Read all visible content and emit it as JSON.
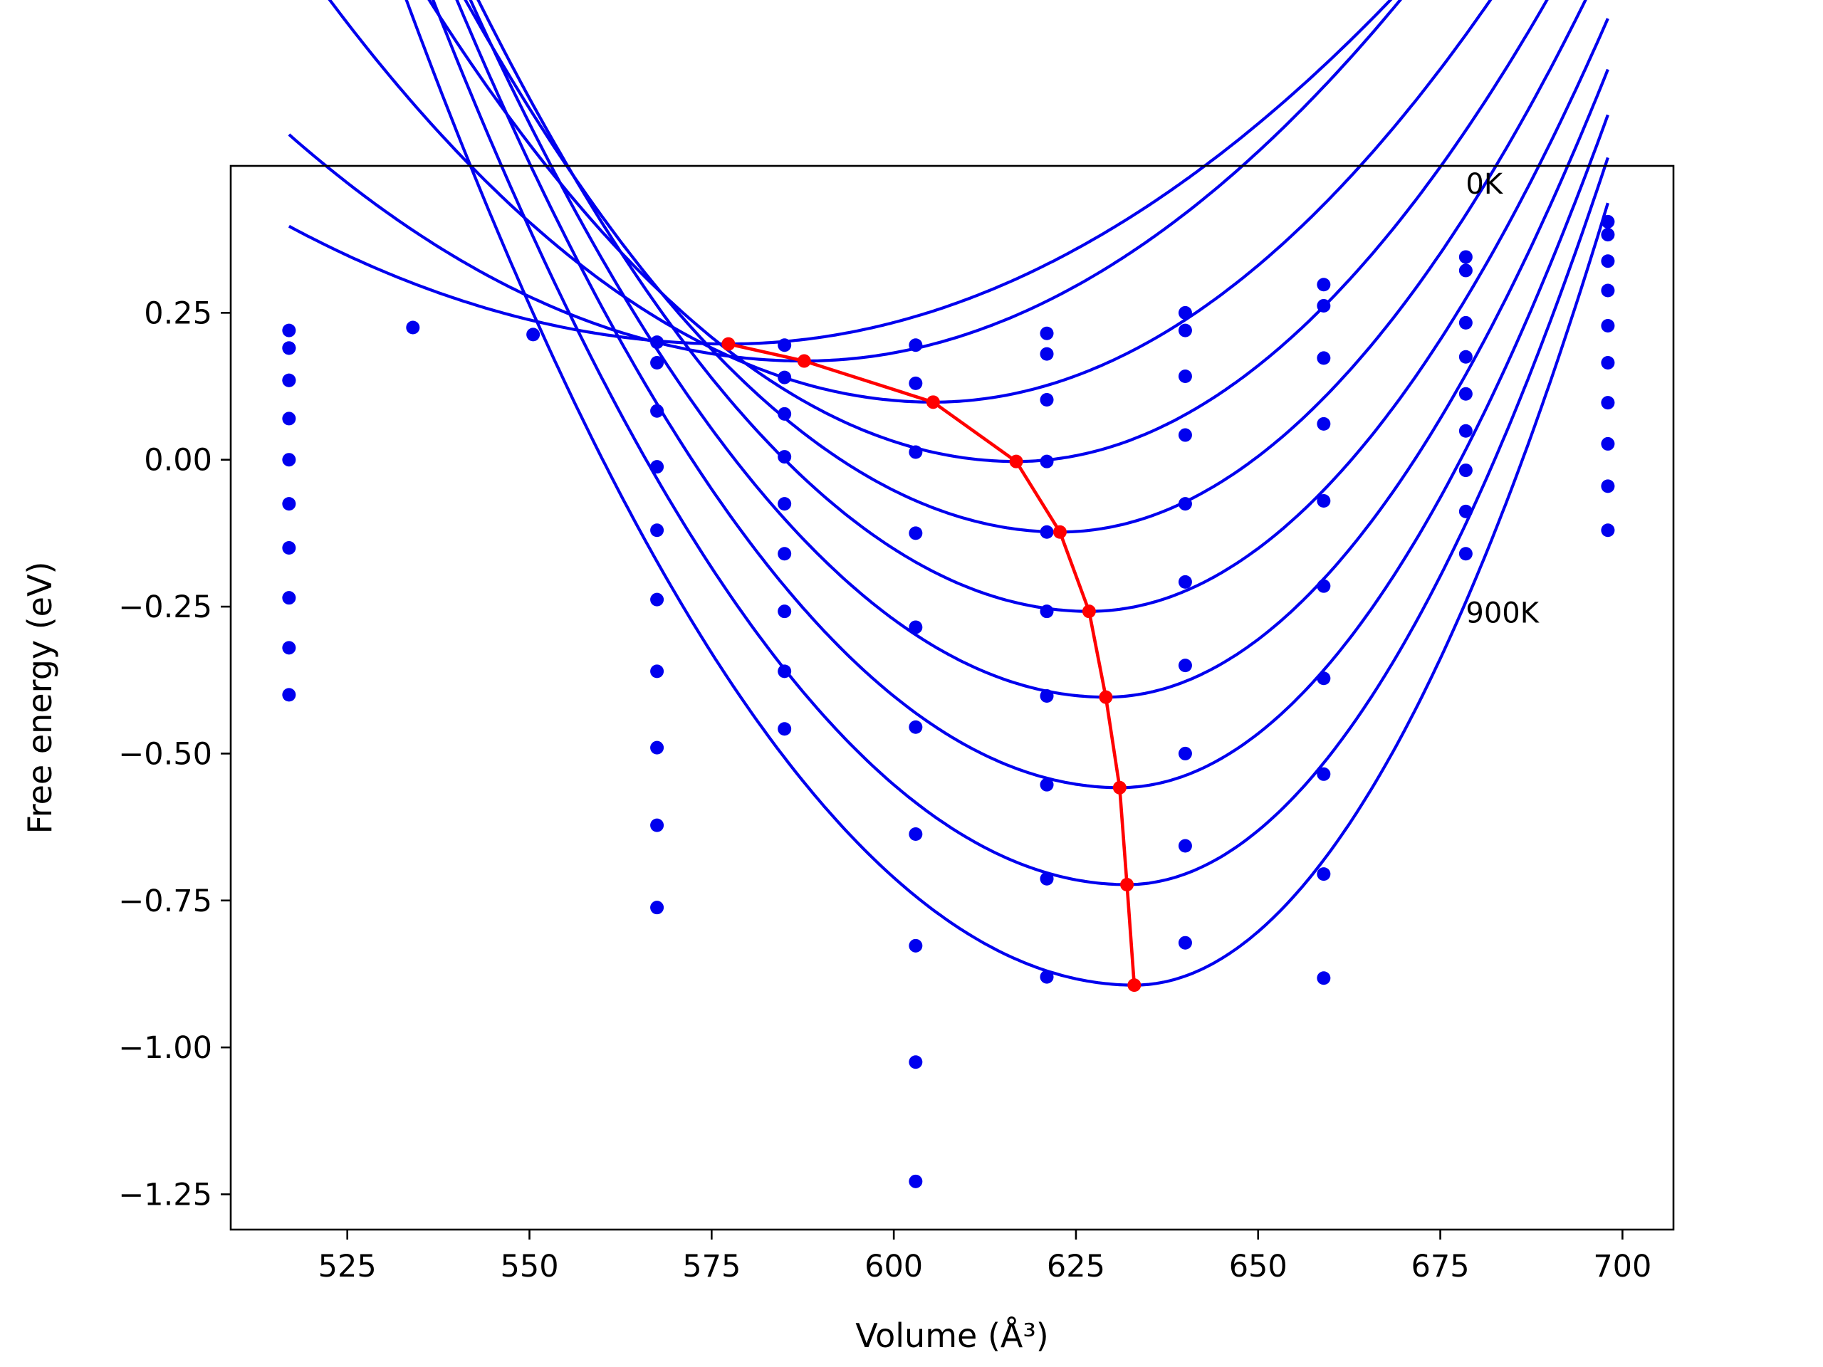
{
  "chart_data": {
    "type": "line",
    "xlabel": "Volume (Å³)",
    "ylabel": "Free energy (eV)",
    "xlim": [
      509,
      707
    ],
    "ylim": [
      -1.31,
      0.5
    ],
    "xticks": [
      525,
      550,
      575,
      600,
      625,
      650,
      675,
      700
    ],
    "yticks": [
      0.25,
      0.0,
      -0.25,
      -0.5,
      -0.75,
      -1.0,
      -1.25
    ],
    "xtick_labels": [
      "525",
      "550",
      "575",
      "600",
      "625",
      "650",
      "675",
      "700"
    ],
    "ytick_labels": [
      "0.25",
      "0.00",
      "−0.25",
      "−0.50",
      "−0.75",
      "−1.00",
      "−1.25"
    ],
    "grid": false,
    "annotations": [
      {
        "text": "0K",
        "x": 678.5,
        "y": 0.47
      },
      {
        "text": "900K",
        "x": 678.5,
        "y": -0.26
      }
    ],
    "colors": {
      "fit": "#0000ee",
      "points": "#0000ee",
      "minimum_path": "#ff0000"
    },
    "series": [
      {
        "points": [
          [
            517,
            0.22
          ],
          [
            534,
            0.225
          ],
          [
            550.5,
            0.213
          ],
          [
            567.5,
            0.2
          ],
          [
            585,
            0.195
          ],
          [
            603,
            0.195
          ],
          [
            621,
            0.215
          ],
          [
            640,
            0.25
          ],
          [
            659,
            0.298
          ],
          [
            678.5,
            0.345
          ],
          [
            698,
            0.405
          ]
        ],
        "fit": {
          "vmin": 577.3,
          "emin": 0.197,
          "curv_left": 5.51e-05,
          "curv_right": 7.09e-05
        }
      },
      {
        "points": [
          [
            517,
            0.19
          ],
          [
            567.5,
            0.165
          ],
          [
            585,
            0.14
          ],
          [
            603,
            0.13
          ],
          [
            621,
            0.18
          ],
          [
            640,
            0.22
          ],
          [
            659,
            0.262
          ],
          [
            678.5,
            0.322
          ],
          [
            698,
            0.383
          ]
        ],
        "fit": {
          "vmin": 587.7,
          "emin": 0.168,
          "curv_left": 7.71e-05,
          "curv_right": 9.18e-05
        }
      },
      {
        "points": [
          [
            517,
            0.19
          ],
          [
            567.5,
            0.083
          ],
          [
            585,
            0.078
          ],
          [
            603,
            0.013
          ],
          [
            621,
            0.102
          ],
          [
            640,
            0.142
          ],
          [
            659,
            0.173
          ],
          [
            678.5,
            0.233
          ],
          [
            698,
            0.338
          ]
        ],
        "fit": {
          "vmin": 605.4,
          "emin": 0.098,
          "curv_left": 9.98e-05,
          "curv_right": 0.000117
        }
      },
      {
        "points": [
          [
            517,
            0.135
          ],
          [
            567.5,
            -0.012
          ],
          [
            585,
            0.005
          ],
          [
            603,
            -0.125
          ],
          [
            621,
            -0.003
          ],
          [
            640,
            0.042
          ],
          [
            659,
            0.061
          ],
          [
            678.5,
            0.175
          ],
          [
            698,
            0.288
          ]
        ],
        "fit": {
          "vmin": 616.8,
          "emin": -0.003,
          "curv_left": 0.000121,
          "curv_right": 0.000148
        }
      },
      {
        "points": [
          [
            517,
            0.135
          ],
          [
            567.5,
            -0.12
          ],
          [
            585,
            -0.075
          ],
          [
            603,
            -0.285
          ],
          [
            621,
            -0.123
          ],
          [
            640,
            -0.075
          ],
          [
            659,
            -0.07
          ],
          [
            678.5,
            0.112
          ],
          [
            698,
            0.228
          ]
        ],
        "fit": {
          "vmin": 622.8,
          "emin": -0.123,
          "curv_left": 0.000136,
          "curv_right": 0.000174
        }
      },
      {
        "points": [
          [
            517,
            0.07
          ],
          [
            567.5,
            -0.238
          ],
          [
            585,
            -0.16
          ],
          [
            603,
            -0.455
          ],
          [
            621,
            -0.258
          ],
          [
            640,
            -0.208
          ],
          [
            659,
            -0.215
          ],
          [
            678.5,
            0.049
          ],
          [
            698,
            0.165
          ]
        ],
        "fit": {
          "vmin": 626.8,
          "emin": -0.258,
          "curv_left": 0.000148,
          "curv_right": 0.000199
        }
      },
      {
        "points": [
          [
            517,
            0.0
          ],
          [
            567.5,
            -0.36
          ],
          [
            585,
            -0.258
          ],
          [
            603,
            -0.637
          ],
          [
            621,
            -0.402
          ],
          [
            640,
            -0.35
          ],
          [
            659,
            -0.372
          ],
          [
            678.5,
            -0.018
          ],
          [
            698,
            0.097
          ]
        ],
        "fit": {
          "vmin": 629.1,
          "emin": -0.404,
          "curv_left": 0.000156,
          "curv_right": 0.000225
        }
      },
      {
        "points": [
          [
            517,
            -0.075
          ],
          [
            567.5,
            -0.49
          ],
          [
            585,
            -0.36
          ],
          [
            603,
            -0.827
          ],
          [
            621,
            -0.553
          ],
          [
            640,
            -0.5
          ],
          [
            659,
            -0.535
          ],
          [
            678.5,
            -0.088
          ],
          [
            698,
            0.027
          ]
        ],
        "fit": {
          "vmin": 631.0,
          "emin": -0.558,
          "curv_left": 0.000162,
          "curv_right": 0.000255
        }
      },
      {
        "points": [
          [
            517,
            -0.15
          ],
          [
            567.5,
            -0.622
          ],
          [
            585,
            -0.458
          ],
          [
            603,
            -1.025
          ],
          [
            621,
            -0.713
          ],
          [
            640,
            -0.657
          ],
          [
            659,
            -0.705
          ],
          [
            678.5,
            -0.16
          ],
          [
            698,
            -0.045
          ]
        ],
        "fit": {
          "vmin": 632.0,
          "emin": -0.723,
          "curv_left": 0.000166,
          "curv_right": 0.000284
        }
      },
      {
        "points": [
          [
            517,
            -0.235
          ],
          [
            517,
            -0.32
          ],
          [
            517,
            -0.4
          ],
          [
            567.5,
            -0.762
          ],
          [
            603,
            -1.228
          ],
          [
            621,
            -0.88
          ],
          [
            640,
            -0.822
          ],
          [
            659,
            -0.882
          ],
          [
            698,
            -0.12
          ]
        ],
        "fit": {
          "vmin": 633.0,
          "emin": -0.894,
          "curv_left": 0.000168,
          "curv_right": 0.000315
        }
      }
    ],
    "minimum_path": {
      "x": [
        577.3,
        587.7,
        605.4,
        616.8,
        622.8,
        626.8,
        629.1,
        631.0,
        632.0,
        633.0
      ],
      "y": [
        0.197,
        0.168,
        0.098,
        -0.003,
        -0.123,
        -0.258,
        -0.404,
        -0.558,
        -0.723,
        -0.894
      ]
    }
  }
}
